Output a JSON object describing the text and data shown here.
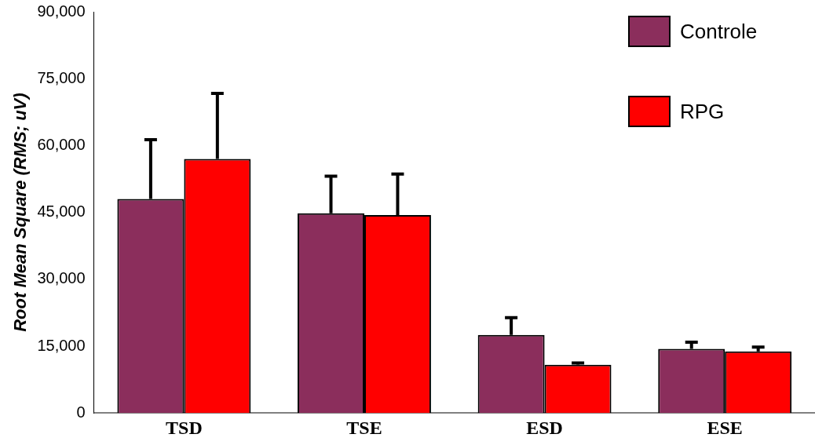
{
  "chart_data": {
    "type": "bar",
    "ylabel": "Root Mean Square (RMS; uV)",
    "categories": [
      "TSD",
      "TSE",
      "ESD",
      "ESE"
    ],
    "series": [
      {
        "name": "Controle",
        "color": "#8b2e5c",
        "values": [
          48000,
          44800,
          17500,
          14400
        ],
        "errors": [
          [
            48000,
            61300
          ],
          [
            44800,
            53100
          ],
          [
            17500,
            21400
          ],
          [
            14400,
            15900
          ]
        ]
      },
      {
        "name": "RPG",
        "color": "#ff0000",
        "values": [
          57000,
          44400,
          10800,
          13800
        ],
        "errors": [
          [
            57000,
            71700
          ],
          [
            44400,
            53600
          ],
          [
            10800,
            11200
          ],
          [
            13800,
            14800
          ]
        ]
      }
    ],
    "ylim": [
      0,
      90000
    ],
    "yticks": [
      {
        "value": 0,
        "label": "0"
      },
      {
        "value": 15000,
        "label": "15,000"
      },
      {
        "value": 30000,
        "label": "30,000"
      },
      {
        "value": 45000,
        "label": "45,000"
      },
      {
        "value": 60000,
        "label": "60,000"
      },
      {
        "value": 75000,
        "label": "75,000"
      },
      {
        "value": 90000,
        "label": "90,000"
      }
    ],
    "grid": false,
    "legend": "top right"
  }
}
